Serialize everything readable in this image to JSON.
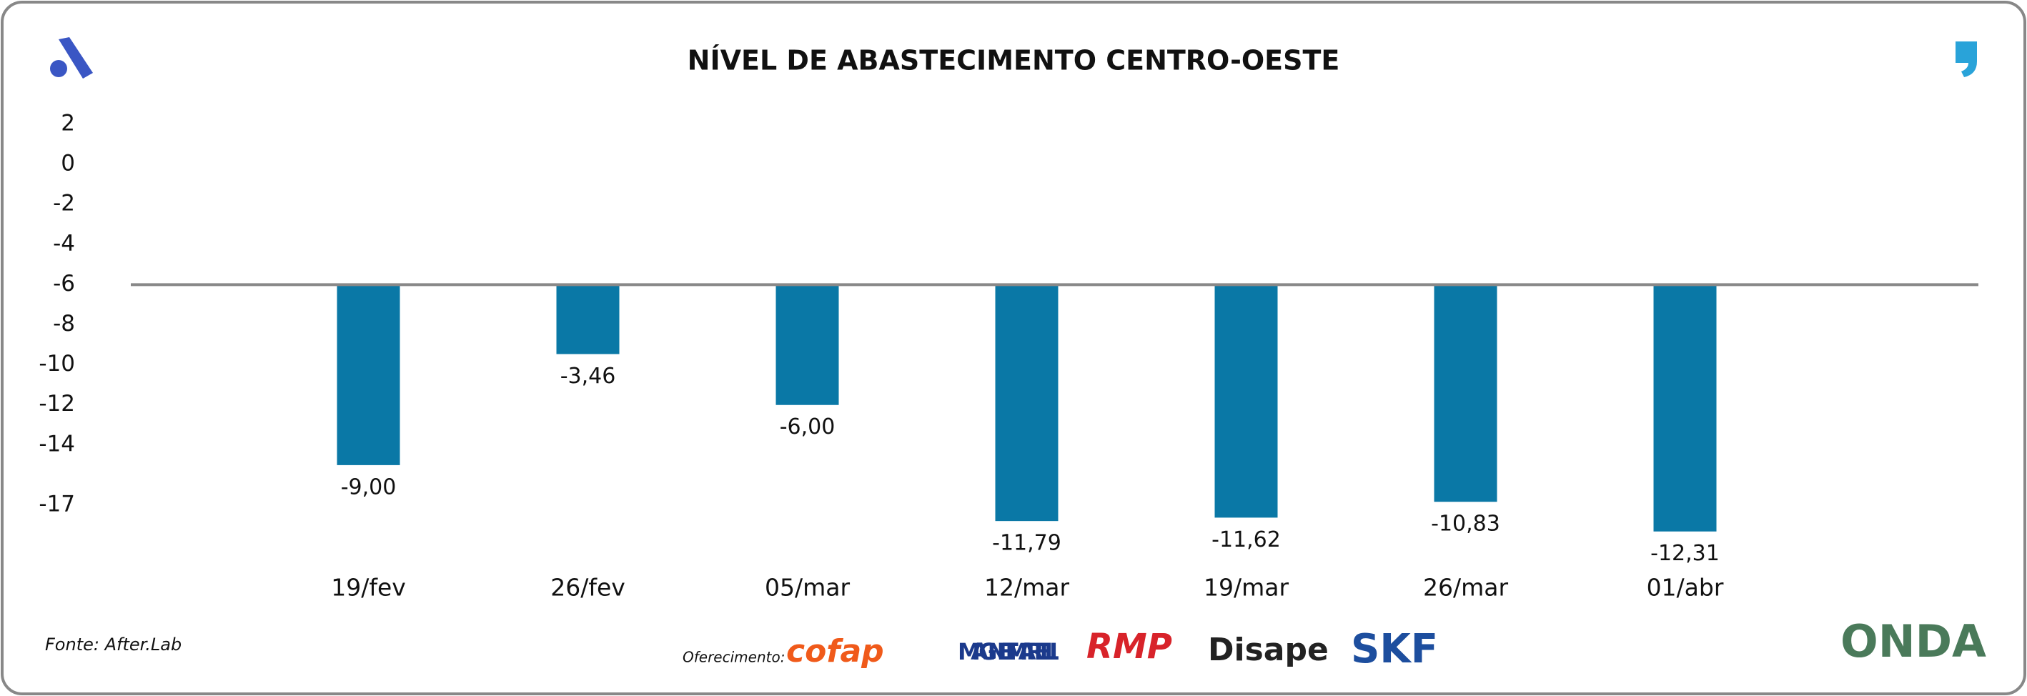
{
  "chart_data": {
    "type": "bar",
    "title": "NÍVEL DE ABASTECIMENTO CENTRO-OESTE",
    "categories": [
      "19/fev",
      "26/fev",
      "05/mar",
      "12/mar",
      "19/mar",
      "26/mar",
      "01/abr"
    ],
    "values": [
      -9,
      -3.46,
      -6,
      -11.79,
      -11.62,
      -10.83,
      -12.31
    ],
    "value_labels": [
      "-9,00",
      "-3,46",
      "-6,00",
      "-11,79",
      "-11,62",
      "-10,83",
      "-12,31"
    ],
    "color": "#0a78a6",
    "baseline": -6,
    "ylim": [
      -17,
      2
    ],
    "yticks": [
      2,
      0,
      -2,
      -4,
      -6,
      -8,
      -10,
      -12,
      -14,
      -17
    ],
    "source": "Fonte: After.Lab",
    "sponsor_label": "Oferecimento:",
    "sponsors": [
      "cofap",
      "MAGNETI MARELLI",
      "RMP",
      "Disape",
      "SKF"
    ],
    "partner": "ONDA"
  }
}
